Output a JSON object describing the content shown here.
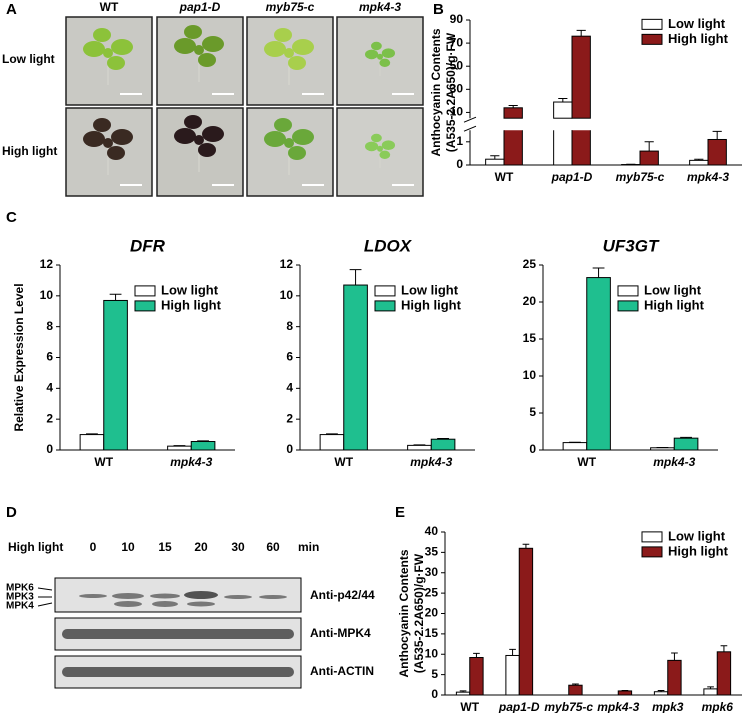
{
  "panel_labels": [
    "A",
    "B",
    "C",
    "D",
    "E"
  ],
  "photo_panel": {
    "columns": [
      "WT",
      "pap1-D",
      "myb75-c",
      "mpk4-3"
    ],
    "rows": [
      "Low light",
      "High light"
    ]
  },
  "blot_panel": {
    "time_label": "High light",
    "times": [
      "0",
      "10",
      "15",
      "20",
      "30",
      "60"
    ],
    "unit": "min",
    "antibodies": [
      "Anti-p42/44",
      "Anti-MPK4",
      "Anti-ACTIN"
    ],
    "markers": [
      "MPK6",
      "MPK3",
      "MPK4"
    ]
  },
  "chart_data": [
    {
      "type": "bar",
      "ylabel": [
        "Anthocyanin Contents",
        "(A535-2.2A650)/g·FW"
      ],
      "categories": [
        "WT",
        "pap1-D",
        "myb75-c",
        "mpk4-3"
      ],
      "segments": [
        {
          "ylim": [
            0,
            1.5
          ],
          "yticks": [
            0,
            1
          ]
        },
        {
          "ylim": [
            5,
            90
          ],
          "yticks": [
            10,
            30,
            50,
            70,
            90
          ]
        }
      ],
      "legend": "upper right",
      "series": [
        {
          "name": "Low light",
          "color": "#ffffff",
          "values": [
            0.25,
            19,
            0.02,
            0.2
          ],
          "errors": [
            0.15,
            3,
            0.01,
            0.05
          ]
        },
        {
          "name": "High light",
          "color": "#8b1a1a",
          "values": [
            14,
            76,
            0.6,
            1.1
          ],
          "errors": [
            2,
            5,
            0.4,
            0.35
          ]
        }
      ]
    },
    {
      "type": "bar",
      "title": "DFR",
      "ylabel": [
        "Relative Expression Level"
      ],
      "categories": [
        "WT",
        "mpk4-3"
      ],
      "ylim": [
        0,
        12
      ],
      "yticks": [
        0,
        2,
        4,
        6,
        8,
        10,
        12
      ],
      "legend": "upper right",
      "series": [
        {
          "name": "Low light",
          "color": "#ffffff",
          "values": [
            1.0,
            0.25
          ],
          "errors": [
            0.05,
            0.03
          ]
        },
        {
          "name": "High light",
          "color": "#1fbf8f",
          "values": [
            9.7,
            0.55
          ],
          "errors": [
            0.4,
            0.04
          ]
        }
      ]
    },
    {
      "type": "bar",
      "title": "LDOX",
      "categories": [
        "WT",
        "mpk4-3"
      ],
      "ylim": [
        0,
        12
      ],
      "yticks": [
        0,
        2,
        4,
        6,
        8,
        10,
        12
      ],
      "legend": "upper right",
      "series": [
        {
          "name": "Low light",
          "color": "#ffffff",
          "values": [
            1.0,
            0.3
          ],
          "errors": [
            0.05,
            0.03
          ]
        },
        {
          "name": "High light",
          "color": "#1fbf8f",
          "values": [
            10.7,
            0.7
          ],
          "errors": [
            1.0,
            0.05
          ]
        }
      ]
    },
    {
      "type": "bar",
      "title": "UF3GT",
      "categories": [
        "WT",
        "mpk4-3"
      ],
      "ylim": [
        0,
        25
      ],
      "yticks": [
        0,
        5,
        10,
        15,
        20,
        25
      ],
      "legend": "upper right",
      "series": [
        {
          "name": "Low light",
          "color": "#ffffff",
          "values": [
            1.0,
            0.3
          ],
          "errors": [
            0.05,
            0.03
          ]
        },
        {
          "name": "High light",
          "color": "#1fbf8f",
          "values": [
            23.3,
            1.6
          ],
          "errors": [
            1.3,
            0.1
          ]
        }
      ]
    },
    {
      "type": "bar",
      "ylabel": [
        "Anthocyanin Contents",
        "(A535-2.2A650)/g·FW"
      ],
      "categories": [
        "WT",
        "pap1-D",
        "myb75-c",
        "mpk4-3",
        "mpk3",
        "mpk6"
      ],
      "ylim": [
        0,
        40
      ],
      "yticks": [
        0,
        5,
        10,
        15,
        20,
        25,
        30,
        35,
        40
      ],
      "legend": "upper right",
      "series": [
        {
          "name": "Low light",
          "color": "#ffffff",
          "values": [
            0.7,
            9.7,
            0,
            0,
            0.8,
            1.5
          ],
          "errors": [
            0.3,
            1.5,
            0,
            0,
            0.3,
            0.5
          ]
        },
        {
          "name": "High light",
          "color": "#8b1a1a",
          "values": [
            9.2,
            36,
            2.4,
            1.0,
            8.5,
            10.6
          ],
          "errors": [
            1.0,
            1.0,
            0.3,
            0.1,
            1.8,
            1.5
          ]
        }
      ]
    }
  ]
}
